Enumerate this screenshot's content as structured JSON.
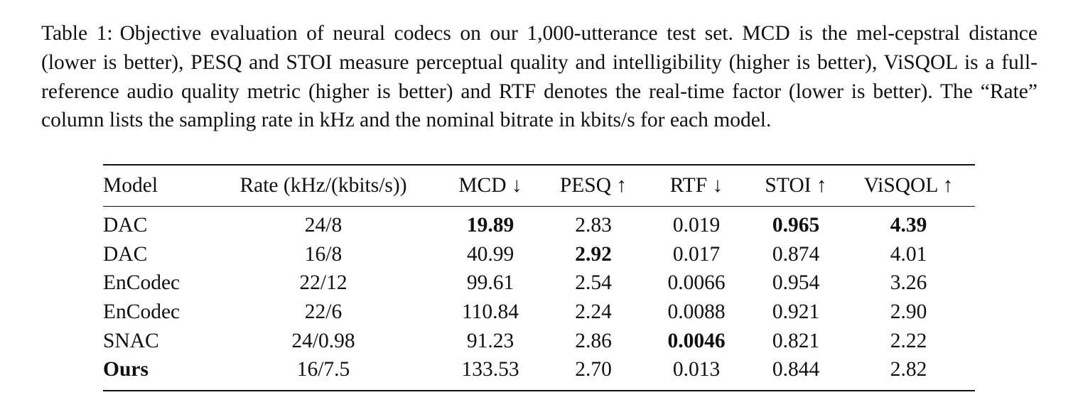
{
  "caption": {
    "label": "Table 1:",
    "text": "Objective evaluation of neural codecs on our 1,000-utterance test set. MCD is the mel-cepstral distance (lower is better), PESQ and STOI measure perceptual quality and intelligibility (higher is better), ViSQOL is a full-reference audio quality metric (higher is better) and RTF denotes the real-time factor (lower is better). The “Rate” column lists the sampling rate in kHz and the nominal bitrate in kbits/s for each model."
  },
  "table": {
    "header": [
      "Model",
      "Rate (kHz/(kbits/s))",
      "MCD ↓",
      "PESQ ↑",
      "RTF ↓",
      "STOI ↑",
      "ViSQOL ↑"
    ],
    "rows": [
      [
        "DAC",
        "24/8",
        "19.89",
        "2.83",
        "0.019",
        "0.965",
        "4.39"
      ],
      [
        "DAC",
        "16/8",
        "40.99",
        "2.92",
        "0.017",
        "0.874",
        "4.01"
      ],
      [
        "EnCodec",
        "22/12",
        "99.61",
        "2.54",
        "0.0066",
        "0.954",
        "3.26"
      ],
      [
        "EnCodec",
        "22/6",
        "110.84",
        "2.24",
        "0.0088",
        "0.921",
        "2.90"
      ],
      [
        "SNAC",
        "24/0.98",
        "91.23",
        "2.86",
        "0.0046",
        "0.821",
        "2.22"
      ],
      [
        "Ours",
        "16/7.5",
        "133.53",
        "2.70",
        "0.013",
        "0.844",
        "2.82"
      ]
    ]
  }
}
